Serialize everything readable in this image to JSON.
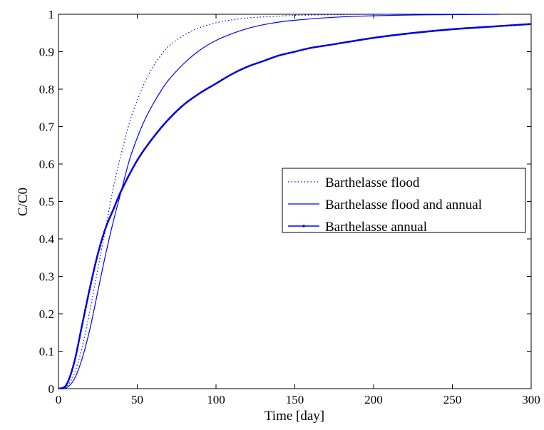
{
  "chart_data": {
    "type": "line",
    "title": "",
    "xlabel": "Time [day]",
    "ylabel": "C/C0",
    "xlim": [
      0,
      300
    ],
    "ylim": [
      0,
      1
    ],
    "x_ticks": [
      "0",
      "50",
      "100",
      "150",
      "200",
      "250",
      "300"
    ],
    "y_ticks": [
      "0",
      "0.1",
      "0.2",
      "0.3",
      "0.4",
      "0.5",
      "0.6",
      "0.7",
      "0.8",
      "0.9",
      "1"
    ],
    "grid": false,
    "legend_position": "center-right",
    "series": [
      {
        "name": "Barthelasse flood",
        "style": "dotted",
        "color": "#0000ff",
        "x": [
          0,
          5,
          10,
          15,
          20,
          25,
          30,
          35,
          40,
          45,
          50,
          55,
          60,
          65,
          70,
          80,
          90,
          100,
          110,
          120,
          130,
          140,
          150,
          175,
          200,
          225,
          250,
          280
        ],
        "y": [
          0,
          0.005,
          0.04,
          0.11,
          0.21,
          0.32,
          0.43,
          0.54,
          0.63,
          0.71,
          0.77,
          0.82,
          0.86,
          0.89,
          0.915,
          0.945,
          0.965,
          0.977,
          0.985,
          0.99,
          0.993,
          0.995,
          0.997,
          0.999,
          1.0,
          1.0,
          1.0,
          1.0
        ]
      },
      {
        "name": "Barthelasse flood and annual",
        "style": "solid",
        "color": "#0000ff",
        "x": [
          0,
          5,
          10,
          15,
          20,
          25,
          30,
          35,
          40,
          45,
          50,
          55,
          60,
          65,
          70,
          80,
          90,
          100,
          110,
          120,
          130,
          140,
          150,
          175,
          200,
          225,
          250,
          280
        ],
        "y": [
          0,
          0.002,
          0.025,
          0.08,
          0.16,
          0.26,
          0.36,
          0.45,
          0.53,
          0.61,
          0.67,
          0.72,
          0.76,
          0.795,
          0.825,
          0.87,
          0.905,
          0.93,
          0.948,
          0.962,
          0.972,
          0.979,
          0.984,
          0.992,
          0.996,
          0.998,
          0.999,
          1.0
        ]
      },
      {
        "name": "Barthelasse annual",
        "style": "solid-dotted-markers",
        "color": "#0000ff",
        "x": [
          0,
          5,
          10,
          15,
          20,
          25,
          30,
          35,
          40,
          50,
          60,
          70,
          80,
          90,
          100,
          110,
          120,
          130,
          140,
          150,
          160,
          175,
          200,
          225,
          250,
          275,
          300
        ],
        "y": [
          0,
          0.01,
          0.07,
          0.17,
          0.27,
          0.36,
          0.43,
          0.48,
          0.53,
          0.61,
          0.67,
          0.72,
          0.76,
          0.79,
          0.815,
          0.84,
          0.86,
          0.875,
          0.89,
          0.9,
          0.91,
          0.92,
          0.937,
          0.95,
          0.96,
          0.967,
          0.974
        ]
      }
    ]
  }
}
